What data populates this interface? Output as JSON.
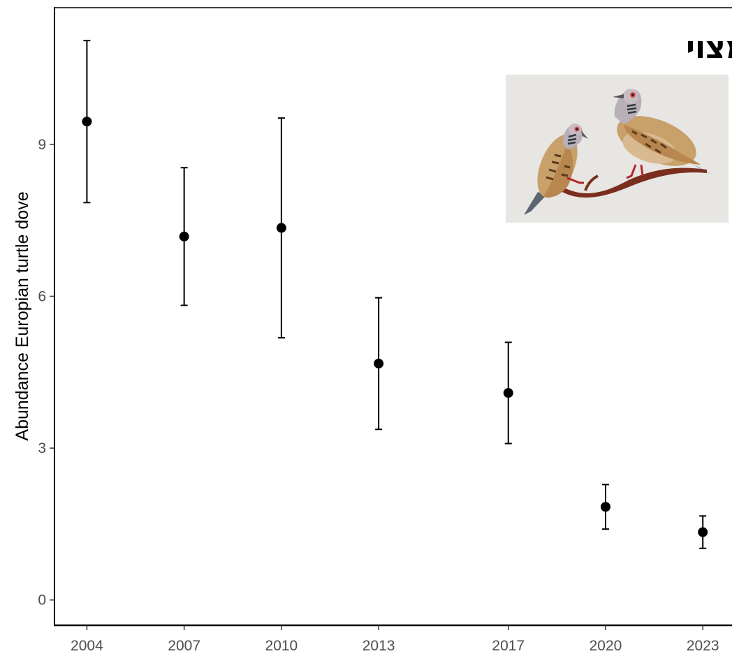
{
  "chart_data": {
    "type": "scatter",
    "title": "",
    "xlabel": "",
    "ylabel": "Abundance Europian turtle dove",
    "x_ticks": [
      2004,
      2007,
      2010,
      2013,
      2017,
      2020,
      2023
    ],
    "y_ticks": [
      0,
      3,
      6,
      9
    ],
    "xlim": [
      2003.0,
      2023.9
    ],
    "ylim": [
      -0.5,
      11.7
    ],
    "grid": false,
    "error_bars": true,
    "series": [
      {
        "points": [
          {
            "x": 2004,
            "y": 9.45,
            "low": 7.85,
            "high": 11.05
          },
          {
            "x": 2007,
            "y": 7.18,
            "low": 5.82,
            "high": 8.54
          },
          {
            "x": 2010,
            "y": 7.35,
            "low": 5.18,
            "high": 9.52
          },
          {
            "x": 2013,
            "y": 4.67,
            "low": 3.37,
            "high": 5.97
          },
          {
            "x": 2017,
            "y": 4.09,
            "low": 3.09,
            "high": 5.09
          },
          {
            "x": 2020,
            "y": 1.84,
            "low": 1.4,
            "high": 2.28
          },
          {
            "x": 2023,
            "y": 1.34,
            "low": 1.02,
            "high": 1.66
          }
        ]
      }
    ],
    "inset": {
      "title": "תור מצוי",
      "image": "illustration of two turtle doves perched on a branch"
    }
  }
}
